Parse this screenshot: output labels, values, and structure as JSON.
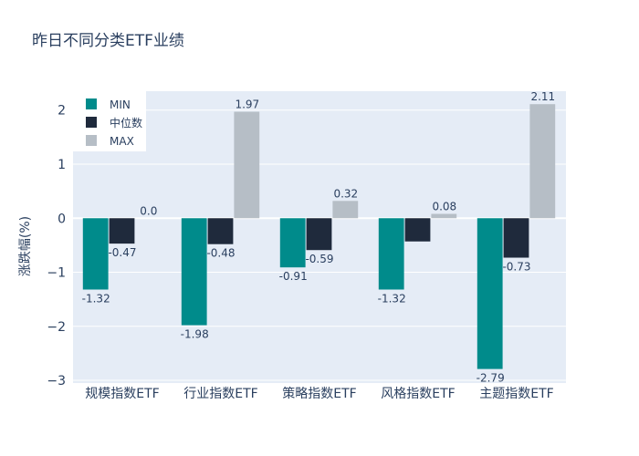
{
  "chart_data": {
    "type": "bar",
    "title": "昨日不同分类ETF业绩",
    "xlabel": "",
    "ylabel": "涨跌幅(%)",
    "ylim": [
      -3.05,
      2.35
    ],
    "yticks": [
      2,
      1,
      0,
      -1,
      -2,
      -3
    ],
    "ytick_labels": [
      "2",
      "1",
      "0",
      "−1",
      "−2",
      "−3"
    ],
    "categories": [
      "规模指数ETF",
      "行业指数ETF",
      "策略指数ETF",
      "风格指数ETF",
      "主题指数ETF"
    ],
    "series": [
      {
        "name": "MIN",
        "color": "#008b8b",
        "values": [
          -1.32,
          -1.98,
          -0.91,
          -1.32,
          -2.79
        ],
        "labels": [
          "-1.32",
          "-1.98",
          "-0.91",
          "-1.32",
          "-2.79"
        ]
      },
      {
        "name": "中位数",
        "color": "#1f2a3c",
        "values": [
          -0.47,
          -0.48,
          -0.59,
          -0.43,
          -0.73
        ],
        "labels": [
          "-0.47",
          "-0.48",
          "-0.59",
          "",
          "-0.73"
        ]
      },
      {
        "name": "MAX",
        "color": "#b6bec6",
        "values": [
          0.0,
          1.97,
          0.32,
          0.08,
          2.11
        ],
        "labels": [
          "0.0",
          "1.97",
          "0.32",
          "0.08",
          "2.11"
        ]
      }
    ],
    "legend_position": "top-left",
    "grid": true,
    "plot_bgcolor": "#e5ecf6"
  }
}
